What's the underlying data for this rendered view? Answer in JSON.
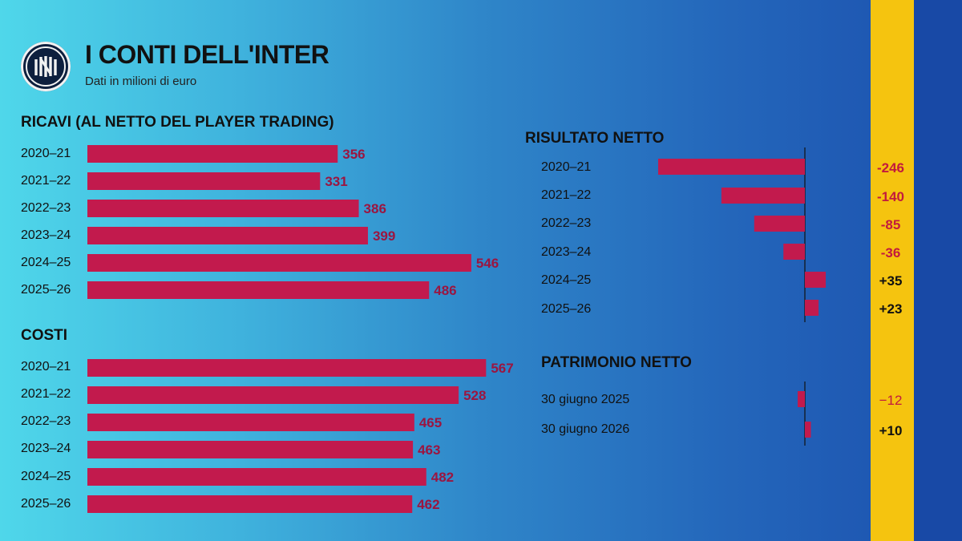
{
  "title": "I CONTI DELL'INTER",
  "subtitle": "Dati in milioni di euro",
  "icons": {
    "logo": "inter-logo-icon"
  },
  "colors": {
    "bar": "#c21a4d",
    "negative_text": "#c21a3e",
    "positive_text": "#111111",
    "yellow_band": "#f5c40f",
    "blue_band": "#1849a6"
  },
  "chart_data": [
    {
      "type": "bar",
      "title": "RICAVI (AL NETTO DEL PLAYER TRADING)",
      "orientation": "horizontal",
      "categories": [
        "2020–21",
        "2021–22",
        "2022–23",
        "2023–24",
        "2024–25",
        "2025–26"
      ],
      "values": [
        356,
        331,
        386,
        399,
        546,
        486
      ],
      "labels": [
        "356",
        "331",
        "386",
        "399",
        "546",
        "486"
      ]
    },
    {
      "type": "bar",
      "title": "COSTI",
      "orientation": "horizontal",
      "categories": [
        "2020–21",
        "2021–22",
        "2022–23",
        "2023–24",
        "2024–25",
        "2025–26"
      ],
      "values": [
        567,
        528,
        465,
        463,
        482,
        462
      ],
      "labels": [
        "567",
        "528",
        "465",
        "463",
        "482",
        "462"
      ]
    },
    {
      "type": "bar",
      "title": "RISULTATO NETTO",
      "orientation": "horizontal",
      "categories": [
        "2020–21",
        "2021–22",
        "2022–23",
        "2023–24",
        "2024–25",
        "2025–26"
      ],
      "values": [
        -246,
        -140,
        -85,
        -36,
        35,
        23
      ],
      "labels": [
        "-246",
        "-140",
        "-85",
        "-36",
        "+35",
        "+23"
      ]
    },
    {
      "type": "bar",
      "title": "PATRIMONIO NETTO",
      "orientation": "horizontal",
      "categories": [
        "30 giugno 2025",
        "30 giugno 2026"
      ],
      "values": [
        -12,
        10
      ],
      "labels": [
        "−12",
        "+10"
      ]
    }
  ]
}
